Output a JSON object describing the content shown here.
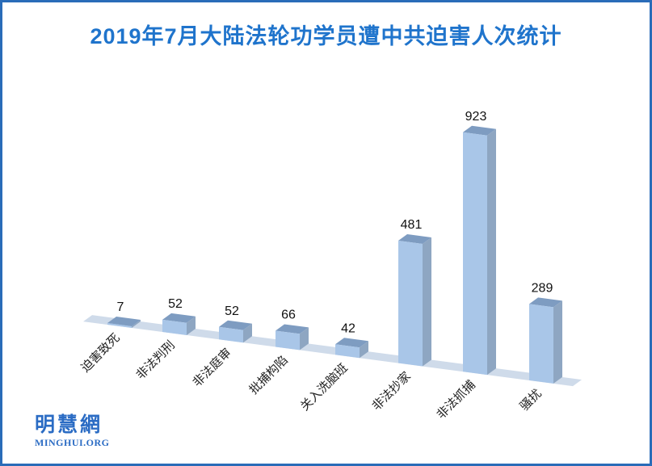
{
  "logo": {
    "cjk": "明慧網",
    "latin": "MINGHUI.ORG"
  },
  "theme": {
    "title_color": "#1F74CC",
    "border_color": "#2A6CB8",
    "bar_front": "#A9C6E8",
    "bar_top": "#7E9CC1",
    "bar_side": "#8EA6C2",
    "floor": "#CFDBEA",
    "value_label_color": "#111111",
    "category_label_color": "#222222",
    "logo_color": "#2B6CC4"
  },
  "chart_data": {
    "type": "bar",
    "projection": "3d",
    "title": "2019年7月大陆法轮功学员遭中共迫害人次统计",
    "categories": [
      "迫害致死",
      "非法判刑",
      "非法庭审",
      "批捕构陷",
      "关入洗脑班",
      "非法抄家",
      "非法抓捕",
      "骚扰"
    ],
    "values": [
      7,
      52,
      52,
      66,
      42,
      481,
      923,
      289
    ],
    "value_labels_shown": true,
    "legend": "none",
    "axis_ticks": "none",
    "category_label_rotation_deg": -45
  }
}
